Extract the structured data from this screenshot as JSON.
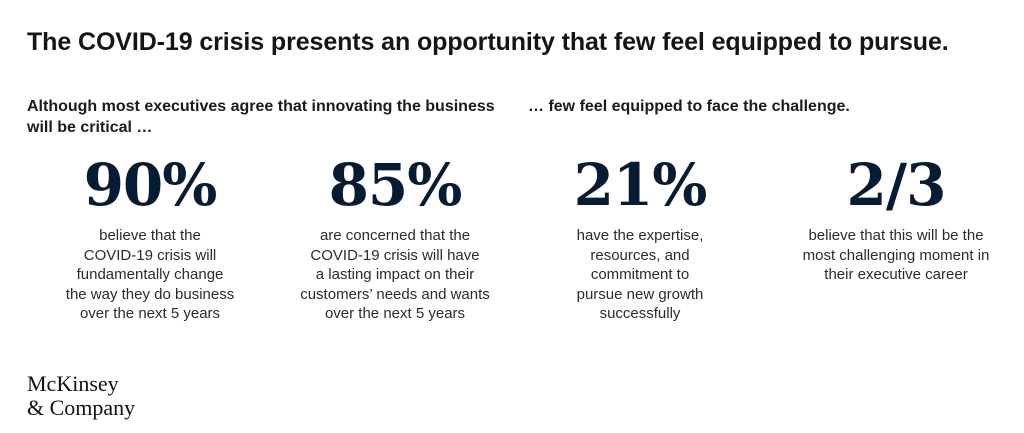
{
  "title": "The COVID-19 crisis presents an opportunity that few feel equipped to pursue.",
  "left_subhead": "Although most executives agree that innovating the business will be critical …",
  "right_subhead": "… few feel equipped to face the challenge.",
  "stats": [
    {
      "value": "90%",
      "lines": [
        "believe that the",
        "COVID-19 crisis will",
        "fundamentally change",
        "the way they do business",
        "over the next 5 years"
      ]
    },
    {
      "value": "85%",
      "lines": [
        "are concerned that the",
        "COVID-19 crisis will have",
        "a lasting impact on their",
        "customers’ needs and wants",
        "over the next 5 years"
      ]
    },
    {
      "value": "21%",
      "lines": [
        "have the expertise,",
        "resources, and",
        "commitment to",
        "pursue new growth",
        "successfully"
      ]
    },
    {
      "value": "2/3",
      "lines": [
        "believe that this will be the",
        "most challenging moment in",
        "their executive career"
      ]
    }
  ],
  "logo": {
    "line1": "McKinsey",
    "line2": "& Company"
  }
}
